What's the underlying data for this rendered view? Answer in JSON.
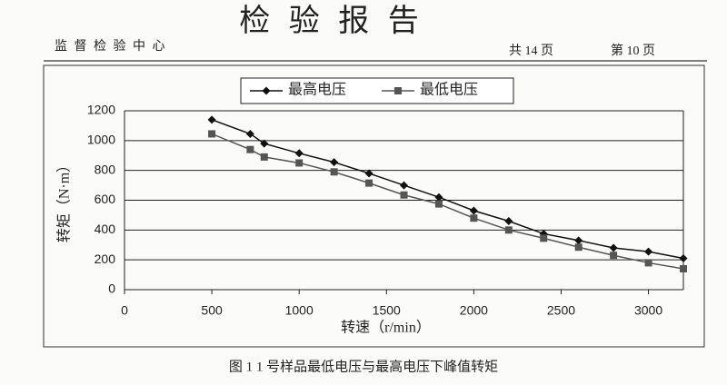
{
  "header": {
    "title": "检 验 报 告",
    "org": "监 督 检 验 中 心",
    "total_pages": "共 14 页",
    "page": "第 10 页"
  },
  "chart_data": {
    "type": "line",
    "x_label": "转速（r/min）",
    "y_label": "转矩（N·m）",
    "x": [
      500,
      720,
      800,
      1000,
      1200,
      1400,
      1600,
      1800,
      2000,
      2200,
      2400,
      2600,
      2800,
      3000,
      3200
    ],
    "series": [
      {
        "name": "最高电压",
        "color": "#111111",
        "marker": "diamond",
        "values": [
          1140,
          1045,
          980,
          915,
          855,
          780,
          700,
          620,
          530,
          460,
          375,
          330,
          280,
          255,
          210
        ]
      },
      {
        "name": "最低电压",
        "color": "#555555",
        "marker": "square",
        "values": [
          1045,
          940,
          890,
          850,
          790,
          715,
          635,
          575,
          480,
          400,
          345,
          285,
          230,
          180,
          140
        ]
      }
    ],
    "xlim": [
      0,
      3200
    ],
    "xticks": [
      0,
      500,
      1000,
      1500,
      2000,
      2500,
      3000
    ],
    "ylim": [
      0,
      1200
    ],
    "yticks": [
      0,
      200,
      400,
      600,
      800,
      1000,
      1200
    ],
    "grid": true,
    "legend": "top"
  },
  "caption": "图 1 1 号样品最低电压与最高电压下峰值转矩"
}
